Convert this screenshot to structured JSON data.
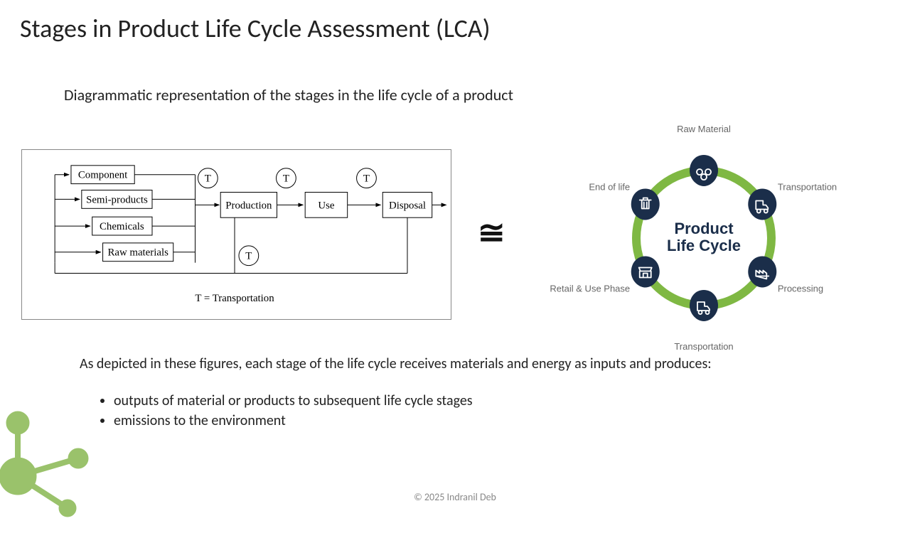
{
  "title": "Stages in Product Life Cycle Assessment (LCA)",
  "subtitle": "Diagrammatic representation of the stages in the life cycle of a product",
  "equalsSymbol": "≅",
  "leftDiagram": {
    "inputBoxes": [
      "Component",
      "Semi-products",
      "Chemicals",
      "Raw materials"
    ],
    "stageBoxes": [
      "Production",
      "Use",
      "Disposal"
    ],
    "tMarker": "T",
    "legend": "T = Transportation",
    "font": "Times New Roman",
    "colors": {
      "stroke": "#000000",
      "fill": "#ffffff",
      "border": "#888888"
    }
  },
  "rightDiagram": {
    "centerTitle1": "Product",
    "centerTitle2": "Life Cycle",
    "ringColor": "#7fb843",
    "iconBg": "#1b2e4a",
    "iconFg": "#ffffff",
    "labelColor": "#666666",
    "nodes": [
      {
        "label": "Raw Material",
        "angle": -90,
        "icon": "raw"
      },
      {
        "label": "Transportation",
        "angle": -30,
        "icon": "truck"
      },
      {
        "label": "Processing",
        "angle": 30,
        "icon": "factory"
      },
      {
        "label": "Transportation",
        "angle": 90,
        "icon": "truck"
      },
      {
        "label": "Retail & Use Phase",
        "angle": 150,
        "icon": "store"
      },
      {
        "label": "End of life",
        "angle": 210,
        "icon": "trash"
      }
    ],
    "ringRadius": 95,
    "ringWidth": 12,
    "iconRadius": 20
  },
  "bodyText": "As depicted in these figures, each stage of the life cycle receives materials and energy as inputs and produces:",
  "bullets": [
    "outputs of material or products to subsequent life cycle stages",
    "emissions to the environment"
  ],
  "footer": "© 2025 Indranil Deb",
  "decoration": {
    "color": "#9ac26b"
  }
}
